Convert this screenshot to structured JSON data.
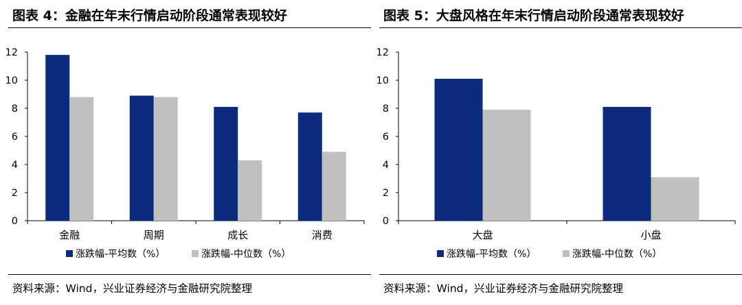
{
  "colors": {
    "mean": "#0d2b7c",
    "median": "#c0c0c0",
    "axis": "#000000"
  },
  "left": {
    "title": "图表 4：金融在年末行情启动阶段通常表现较好",
    "source": "资料来源：Wind，兴业证券经济与金融研究院整理"
  },
  "right": {
    "title": "图表 5：大盘风格在年末行情启动阶段通常表现较好",
    "source": "资料来源：Wind，兴业证券经济与金融研究院整理"
  },
  "chart_data": [
    {
      "type": "bar",
      "title": "图表 4：金融在年末行情启动阶段通常表现较好",
      "categories": [
        "金融",
        "周期",
        "成长",
        "消费"
      ],
      "series": [
        {
          "name": "涨跌幅-平均数（%）",
          "values": [
            11.8,
            8.9,
            8.1,
            7.7
          ]
        },
        {
          "name": "涨跌幅-中位数（%）",
          "values": [
            8.8,
            8.8,
            4.3,
            4.9
          ]
        }
      ],
      "ylim": [
        0,
        12
      ],
      "yticks": [
        0,
        2,
        4,
        6,
        8,
        10,
        12
      ],
      "xlabel": "",
      "ylabel": "",
      "legend": "bottom"
    },
    {
      "type": "bar",
      "title": "图表 5：大盘风格在年末行情启动阶段通常表现较好",
      "categories": [
        "大盘",
        "小盘"
      ],
      "series": [
        {
          "name": "涨跌幅-平均数（%）",
          "values": [
            10.1,
            8.1
          ]
        },
        {
          "name": "涨跌幅-中位数（%）",
          "values": [
            7.9,
            3.1
          ]
        }
      ],
      "ylim": [
        0,
        12
      ],
      "yticks": [
        0,
        2,
        4,
        6,
        8,
        10,
        12
      ],
      "xlabel": "",
      "ylabel": "",
      "legend": "bottom"
    }
  ]
}
